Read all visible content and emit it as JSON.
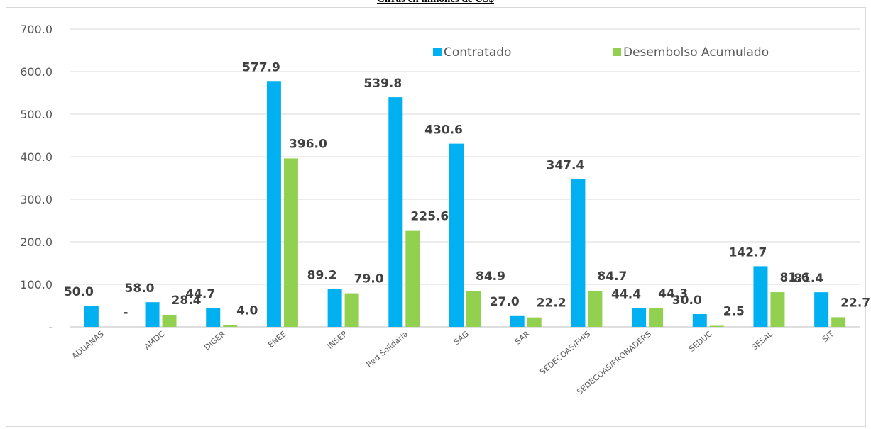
{
  "title": "Cifras en millones de US$",
  "chart_data": {
    "type": "bar",
    "title": "Cifras en millones de US$",
    "categories": [
      "ADUANAS",
      "AMDC",
      "DIGER",
      "ENEE",
      "INSEP",
      "Red Solidaria",
      "SAG",
      "SAR",
      "SEDECOAS/FHIS",
      "SEDECOAS/PRONADERS",
      "SEDUC",
      "SESAL",
      "SIT"
    ],
    "series": [
      {
        "name": "Contratado",
        "color": "#00b0f0",
        "values": [
          50.0,
          58.0,
          44.7,
          577.9,
          89.2,
          539.8,
          430.6,
          27.0,
          347.4,
          44.4,
          30.0,
          142.7,
          81.4
        ],
        "labels": [
          "50.0",
          "58.0",
          "44.7",
          "577.9",
          "89.2",
          "539.8",
          "430.6",
          "27.0",
          "347.4",
          "44.4",
          "30.0",
          "142.7",
          "81.4"
        ]
      },
      {
        "name": "Desembolso Acumulado",
        "color": "#92d050",
        "values": [
          0,
          28.4,
          4.0,
          396.0,
          79.0,
          225.6,
          84.9,
          22.2,
          84.7,
          44.3,
          2.5,
          81.6,
          22.7
        ],
        "labels": [
          "-",
          "28.4",
          "4.0",
          "396.0",
          "79.0",
          "225.6",
          "84.9",
          "22.2",
          "84.7",
          "44.3",
          "2.5",
          "81.6",
          "22.7"
        ]
      }
    ],
    "ylim": [
      0,
      700
    ],
    "yticks": [
      0,
      100,
      200,
      300,
      400,
      500,
      600,
      700
    ],
    "ytick_labels": [
      "-",
      "100.0",
      "200.0",
      "300.0",
      "400.0",
      "500.0",
      "600.0",
      "700.0"
    ],
    "grid": true,
    "legend_position": "top-right",
    "xlabel": "",
    "ylabel": ""
  }
}
